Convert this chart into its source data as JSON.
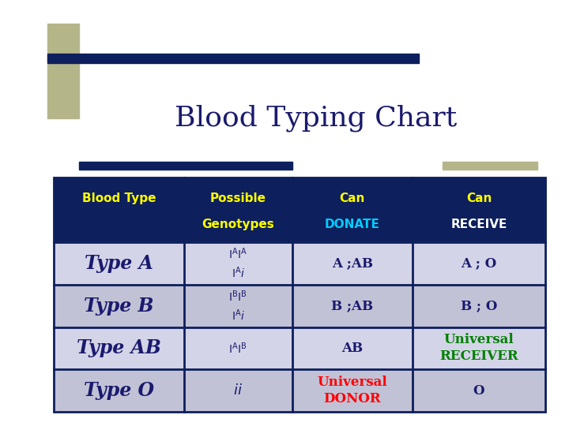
{
  "title": "Blood Typing Chart",
  "title_color": "#1a1a6e",
  "title_fontsize": 26,
  "background_color": "#ffffff",
  "header_bg": "#0d1f5c",
  "header_text_yellow": "#ffff00",
  "header_donate_color": "#00ccff",
  "header_receive_color": "#ffffff",
  "row_bg_colors": [
    "#d4d4e8",
    "#c2c2d6",
    "#d4d4e8",
    "#c2c2d6"
  ],
  "cell_border_color": "#0d1f5c",
  "type_text_color": "#1a1a6e",
  "genotype_text_color": "#1a1a6e",
  "universal_donor_color": "#ff0000",
  "universal_receiver_color": "#008000",
  "decorative_bar_color": "#0d1f5c",
  "decorative_accent_color": "#b5b58a",
  "col_headers_line1": [
    "Blood Type",
    "Possible",
    "Can",
    "Can"
  ],
  "col_headers_line2": [
    "",
    "Genotypes",
    "DONATE",
    "RECEIVE"
  ],
  "rows": [
    {
      "type": "Type A",
      "genotype1": "$\\mathregular{I}^{\\mathregular{A}}\\mathregular{I}^{\\mathregular{A}}$",
      "genotype2": "$\\mathregular{I}^{\\mathregular{A}}\\mathit{i}$",
      "donate": "A ;AB",
      "receive": "A ; O",
      "donate_color": "#1a1a6e",
      "receive_color": "#1a1a6e"
    },
    {
      "type": "Type B",
      "genotype1": "$\\mathregular{I}^{\\mathregular{B}}\\mathregular{I}^{\\mathregular{B}}$",
      "genotype2": "$\\mathregular{I}^{\\mathregular{A}}\\mathit{i}$",
      "donate": "B ;AB",
      "receive": "B ; O",
      "donate_color": "#1a1a6e",
      "receive_color": "#1a1a6e"
    },
    {
      "type": "Type AB",
      "genotype1": "$\\mathregular{I}^{\\mathregular{A}}\\mathregular{I}^{\\mathregular{B}}$",
      "genotype2": "",
      "donate": "AB",
      "receive": "Universal\nRECEIVER",
      "donate_color": "#1a1a6e",
      "receive_color": "#008000"
    },
    {
      "type": "Type O",
      "genotype1": "ii",
      "genotype2": "",
      "donate": "Universal\nDONOR",
      "receive": "O",
      "donate_color": "#ff0000",
      "receive_color": "#1a1a6e"
    }
  ]
}
